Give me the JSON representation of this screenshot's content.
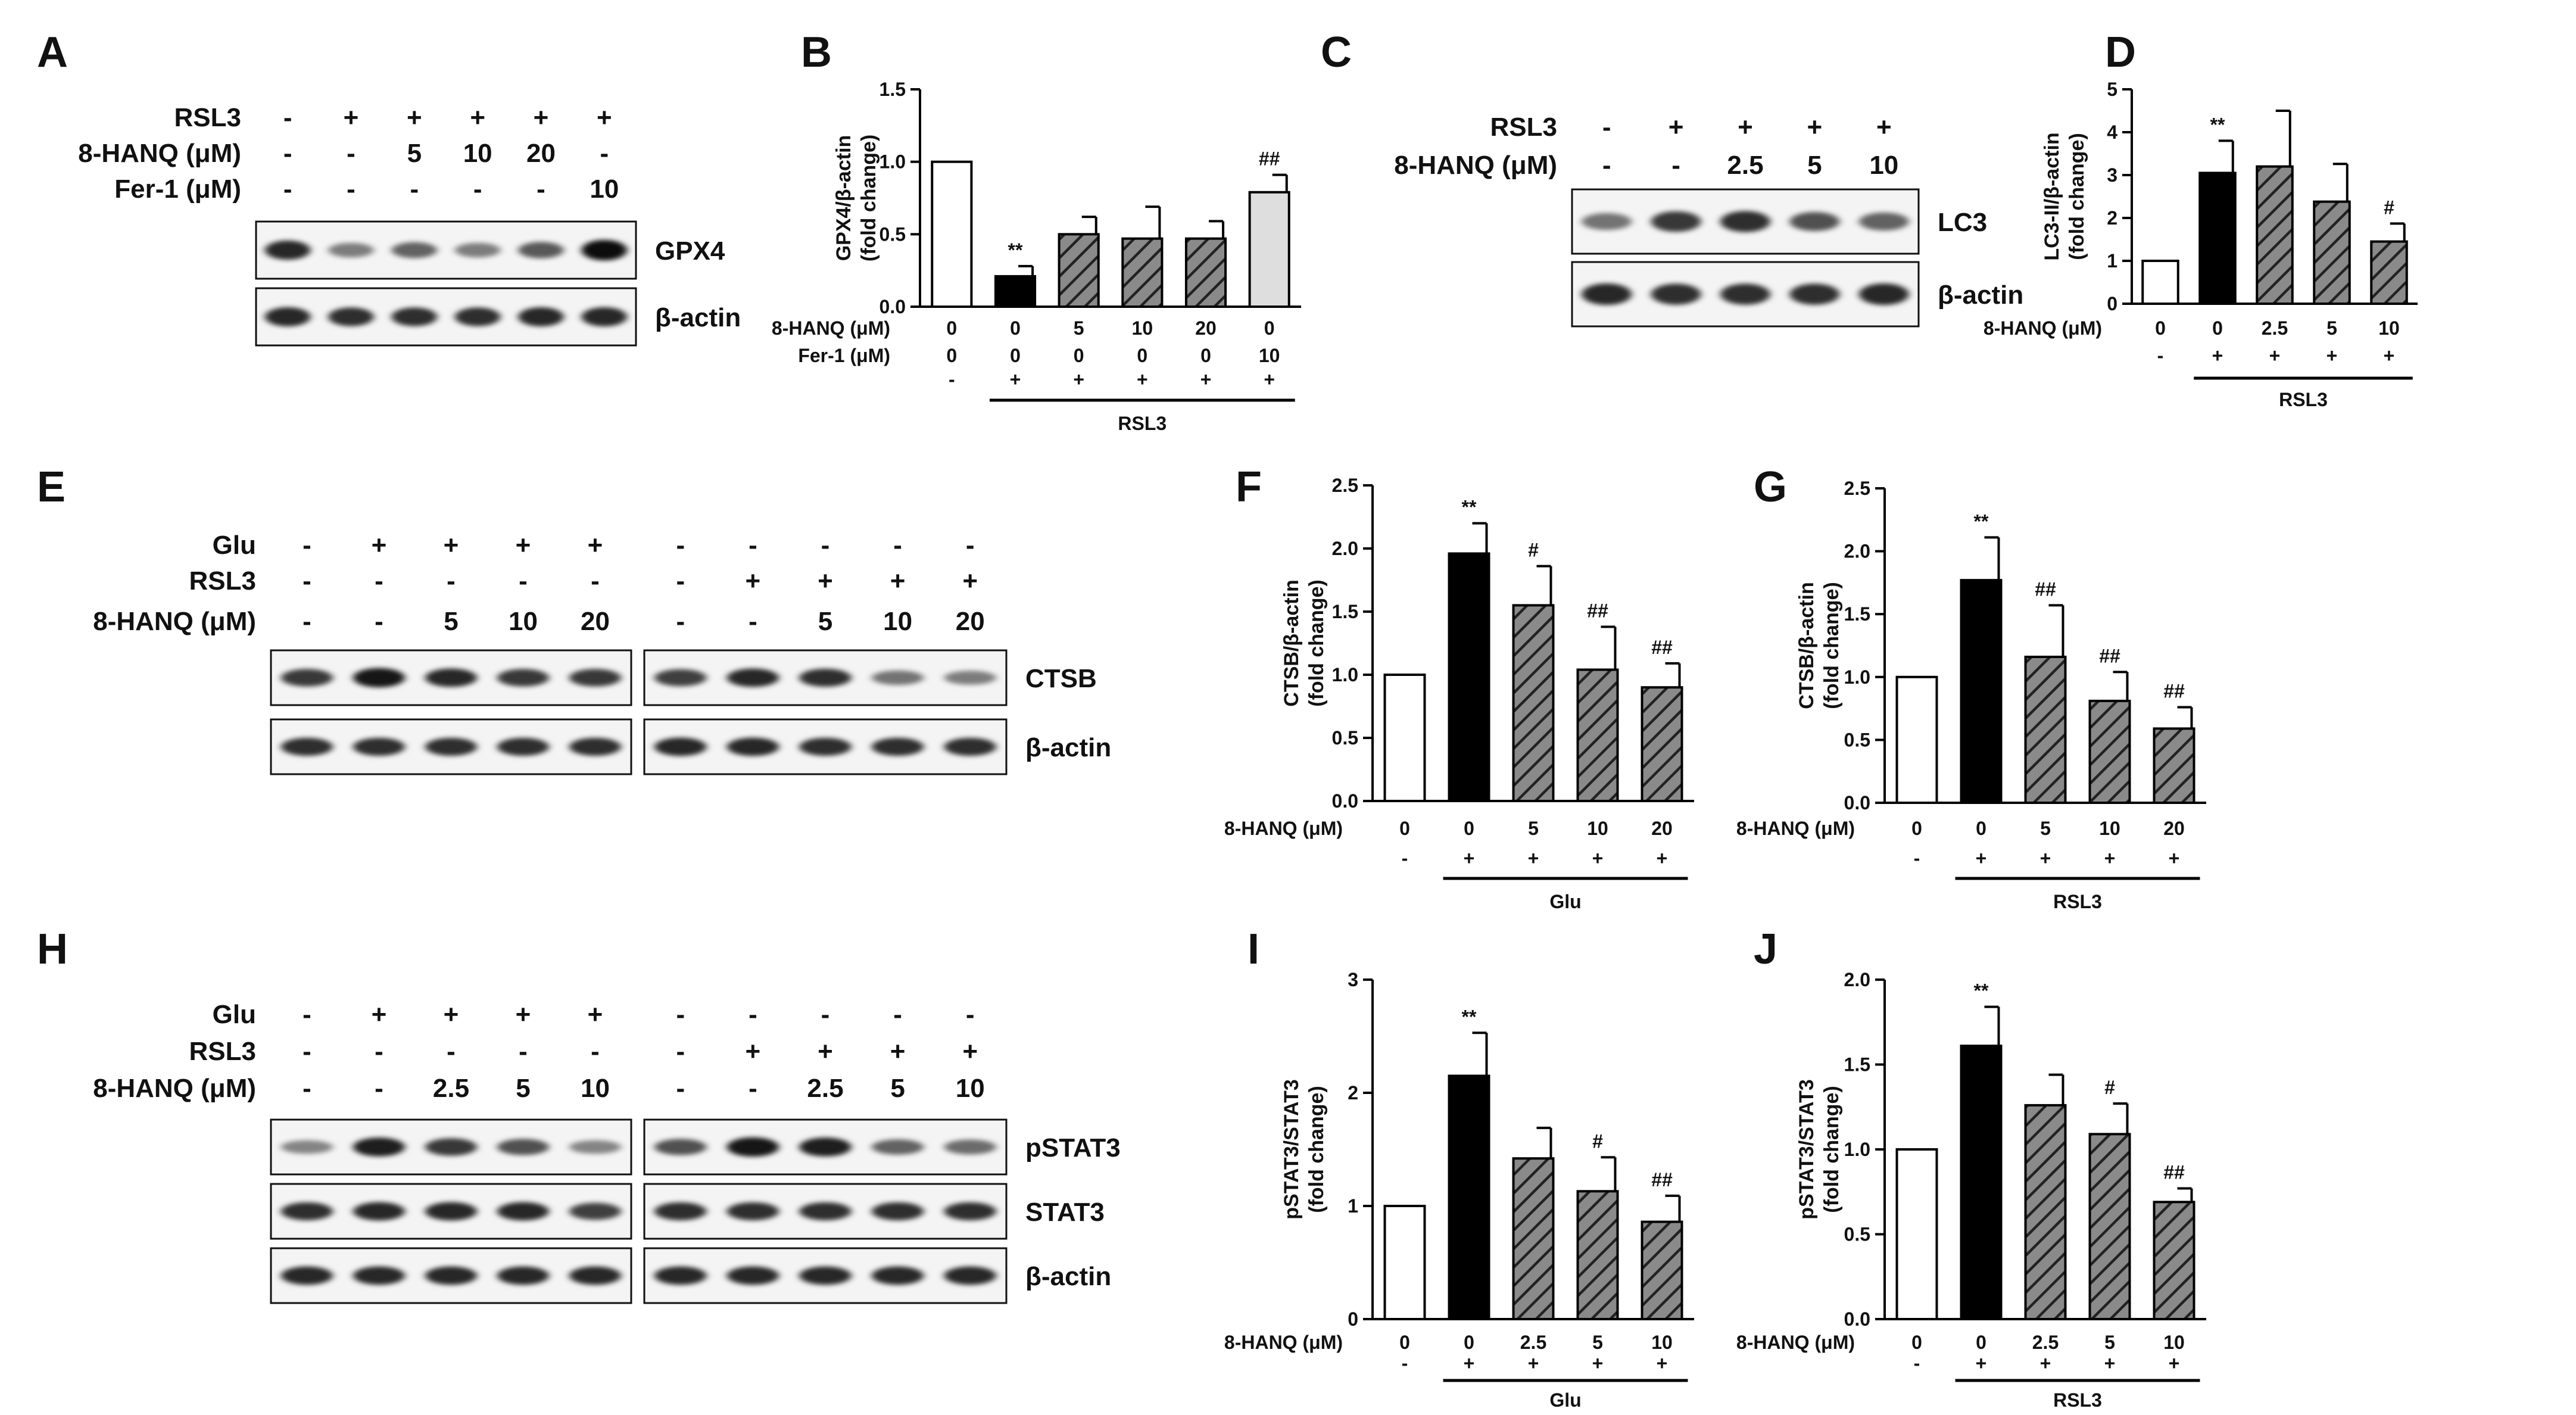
{
  "figure": {
    "blots": [
      {
        "letter": "A",
        "groups": [
          {
            "columns": 6,
            "rows": [
              {
                "label": "RSL3",
                "signs": [
                  "-",
                  "+",
                  "+",
                  "+",
                  "+",
                  "+"
                ]
              },
              {
                "label": "8-HANQ (μM)",
                "signs": [
                  "-",
                  "-",
                  "5",
                  "10",
                  "20",
                  "-"
                ]
              },
              {
                "label": "Fer-1 (μM)",
                "signs": [
                  "-",
                  "-",
                  "-",
                  "-",
                  "-",
                  "10"
                ]
              }
            ],
            "strips": [
              {
                "name": "GPX4",
                "intensity": [
                  0.85,
                  0.35,
                  0.5,
                  0.35,
                  0.55,
                  1.0
                ]
              },
              {
                "name": "β-actin",
                "intensity": [
                  0.85,
                  0.8,
                  0.8,
                  0.8,
                  0.85,
                  0.85
                ]
              }
            ]
          }
        ]
      },
      {
        "letter": "C",
        "groups": [
          {
            "columns": 5,
            "rows": [
              {
                "label": "RSL3",
                "signs": [
                  "-",
                  "+",
                  "+",
                  "+",
                  "+"
                ]
              },
              {
                "label": "8-HANQ (μM)",
                "signs": [
                  "-",
                  "-",
                  "2.5",
                  "5",
                  "10"
                ]
              }
            ],
            "strips": [
              {
                "name": "LC3",
                "intensity": [
                  0.4,
                  0.75,
                  0.8,
                  0.6,
                  0.5
                ]
              },
              {
                "name": "β-actin",
                "intensity": [
                  0.85,
                  0.8,
                  0.8,
                  0.8,
                  0.85
                ]
              }
            ]
          }
        ]
      },
      {
        "letter": "E",
        "groups": [
          {
            "columns": 5,
            "rows": [
              {
                "label": "Glu",
                "signs": [
                  "-",
                  "+",
                  "+",
                  "+",
                  "+"
                ]
              },
              {
                "label": "RSL3",
                "signs": [
                  "-",
                  "-",
                  "-",
                  "-",
                  "-"
                ]
              },
              {
                "label": "8-HANQ (μM)",
                "signs": [
                  "-",
                  "-",
                  "5",
                  "10",
                  "20"
                ]
              }
            ],
            "strips": [
              {
                "intensity": [
                  0.75,
                  0.95,
                  0.85,
                  0.75,
                  0.75
                ]
              },
              {
                "intensity": [
                  0.8,
                  0.8,
                  0.8,
                  0.8,
                  0.8
                ]
              }
            ]
          },
          {
            "columns": 5,
            "rows": [
              {
                "signs": [
                  "-",
                  "-",
                  "-",
                  "-",
                  "-"
                ]
              },
              {
                "signs": [
                  "-",
                  "+",
                  "+",
                  "+",
                  "+"
                ]
              },
              {
                "signs": [
                  "-",
                  "-",
                  "5",
                  "10",
                  "20"
                ]
              }
            ],
            "strips": [
              {
                "name": "CTSB",
                "intensity": [
                  0.7,
                  0.85,
                  0.8,
                  0.4,
                  0.35
                ]
              },
              {
                "name": "β-actin",
                "intensity": [
                  0.85,
                  0.85,
                  0.8,
                  0.8,
                  0.8
                ]
              }
            ]
          }
        ]
      },
      {
        "letter": "H",
        "groups": [
          {
            "columns": 5,
            "rows": [
              {
                "label": "Glu",
                "signs": [
                  "-",
                  "+",
                  "+",
                  "+",
                  "+"
                ]
              },
              {
                "label": "RSL3",
                "signs": [
                  "-",
                  "-",
                  "-",
                  "-",
                  "-"
                ]
              },
              {
                "label": "8-HANQ (μM)",
                "signs": [
                  "-",
                  "-",
                  "2.5",
                  "5",
                  "10"
                ]
              }
            ],
            "strips": [
              {
                "intensity": [
                  0.3,
                  0.9,
                  0.75,
                  0.6,
                  0.3
                ]
              },
              {
                "intensity": [
                  0.8,
                  0.85,
                  0.85,
                  0.85,
                  0.7
                ]
              },
              {
                "intensity": [
                  0.85,
                  0.85,
                  0.85,
                  0.85,
                  0.85
                ]
              }
            ]
          },
          {
            "columns": 5,
            "rows": [
              {
                "signs": [
                  "-",
                  "-",
                  "-",
                  "-",
                  "-"
                ]
              },
              {
                "signs": [
                  "-",
                  "+",
                  "+",
                  "+",
                  "+"
                ]
              },
              {
                "signs": [
                  "-",
                  "-",
                  "2.5",
                  "5",
                  "10"
                ]
              }
            ],
            "strips": [
              {
                "name": "pSTAT3",
                "intensity": [
                  0.6,
                  0.95,
                  0.9,
                  0.5,
                  0.45
                ]
              },
              {
                "name": "STAT3",
                "intensity": [
                  0.8,
                  0.8,
                  0.8,
                  0.8,
                  0.8
                ]
              },
              {
                "name": "β-actin",
                "intensity": [
                  0.85,
                  0.85,
                  0.85,
                  0.85,
                  0.85
                ]
              }
            ]
          }
        ]
      }
    ]
  },
  "chart_data": [
    {
      "letter": "B",
      "type": "bar",
      "ylabel": "GPX4/β-actin\n(fold change)",
      "ylim": [
        0,
        1.5
      ],
      "yticks": [
        "0.0",
        "0.5",
        "1.0",
        "1.5"
      ],
      "row_labels": [
        {
          "label": "8-HANQ (μM)",
          "values": [
            "0",
            "0",
            "5",
            "10",
            "20",
            "0"
          ]
        },
        {
          "label": "Fer-1 (μM)",
          "values": [
            "0",
            "0",
            "0",
            "0",
            "0",
            "10"
          ]
        }
      ],
      "signs": [
        "-",
        "+",
        "+",
        "+",
        "+",
        "+"
      ],
      "group_label": "RSL3",
      "values": [
        1.0,
        0.21,
        0.5,
        0.47,
        0.47,
        0.79
      ],
      "errors": [
        0,
        0.07,
        0.12,
        0.22,
        0.12,
        0.12
      ],
      "significance": [
        "",
        "**",
        "",
        "",
        "",
        "##"
      ],
      "fills": [
        "white",
        "black",
        "hatch",
        "hatch",
        "hatch",
        "lightgray"
      ]
    },
    {
      "letter": "D",
      "type": "bar",
      "ylabel": "LC3-II/β-actin\n(fold change)",
      "ylim": [
        0,
        5
      ],
      "yticks": [
        "0",
        "1",
        "2",
        "3",
        "4",
        "5"
      ],
      "row_labels": [
        {
          "label": "8-HANQ (μM)",
          "values": [
            "0",
            "0",
            "2.5",
            "5",
            "10"
          ]
        }
      ],
      "signs": [
        "-",
        "+",
        "+",
        "+",
        "+"
      ],
      "group_label": "RSL3",
      "values": [
        1.0,
        3.05,
        3.2,
        2.38,
        1.45
      ],
      "errors": [
        0,
        0.75,
        1.3,
        0.88,
        0.42
      ],
      "significance": [
        "",
        "**",
        "",
        "",
        "#"
      ],
      "fills": [
        "white",
        "black",
        "hatch",
        "hatch",
        "hatch"
      ]
    },
    {
      "letter": "F",
      "type": "bar",
      "ylabel": "CTSB/β-actin\n(fold change)",
      "ylim": [
        0,
        2.5
      ],
      "yticks": [
        "0.0",
        "0.5",
        "1.0",
        "1.5",
        "2.0",
        "2.5"
      ],
      "row_labels": [
        {
          "label": "8-HANQ (μM)",
          "values": [
            "0",
            "0",
            "5",
            "10",
            "20"
          ]
        }
      ],
      "signs": [
        "-",
        "+",
        "+",
        "+",
        "+"
      ],
      "group_label": "Glu",
      "values": [
        1.0,
        1.96,
        1.55,
        1.04,
        0.9
      ],
      "errors": [
        0,
        0.24,
        0.31,
        0.34,
        0.19
      ],
      "significance": [
        "",
        "**",
        "#",
        "##",
        "##"
      ],
      "fills": [
        "white",
        "black",
        "hatch",
        "hatch",
        "hatch"
      ]
    },
    {
      "letter": "G",
      "type": "bar",
      "ylabel": "CTSB/β-actin\n(fold change)",
      "ylim": [
        0,
        2.5
      ],
      "yticks": [
        "0.0",
        "0.5",
        "1.0",
        "1.5",
        "2.0",
        "2.5"
      ],
      "row_labels": [
        {
          "label": "8-HANQ (μM)",
          "values": [
            "0",
            "0",
            "5",
            "10",
            "20"
          ]
        }
      ],
      "signs": [
        "-",
        "+",
        "+",
        "+",
        "+"
      ],
      "group_label": "RSL3",
      "values": [
        1.0,
        1.77,
        1.16,
        0.81,
        0.59
      ],
      "errors": [
        0,
        0.34,
        0.41,
        0.23,
        0.17
      ],
      "significance": [
        "",
        "**",
        "##",
        "##",
        "##"
      ],
      "fills": [
        "white",
        "black",
        "hatch",
        "hatch",
        "hatch"
      ]
    },
    {
      "letter": "I",
      "type": "bar",
      "ylabel": "pSTAT3/STAT3\n(fold change)",
      "ylim": [
        0,
        3
      ],
      "yticks": [
        "0",
        "1",
        "2",
        "3"
      ],
      "row_labels": [
        {
          "label": "8-HANQ (μM)",
          "values": [
            "0",
            "0",
            "2.5",
            "5",
            "10"
          ]
        }
      ],
      "signs": [
        "-",
        "+",
        "+",
        "+",
        "+"
      ],
      "group_label": "Glu",
      "values": [
        1.0,
        2.15,
        1.42,
        1.13,
        0.86
      ],
      "errors": [
        0,
        0.38,
        0.27,
        0.3,
        0.23
      ],
      "significance": [
        "",
        "**",
        "",
        "#",
        "##"
      ],
      "fills": [
        "white",
        "black",
        "hatch",
        "hatch",
        "hatch"
      ]
    },
    {
      "letter": "J",
      "type": "bar",
      "ylabel": "pSTAT3/STAT3\n(fold change)",
      "ylim": [
        0,
        2
      ],
      "yticks": [
        "0.0",
        "0.5",
        "1.0",
        "1.5",
        "2.0"
      ],
      "row_labels": [
        {
          "label": "8-HANQ (μM)",
          "values": [
            "0",
            "0",
            "2.5",
            "5",
            "10"
          ]
        }
      ],
      "signs": [
        "-",
        "+",
        "+",
        "+",
        "+"
      ],
      "group_label": "RSL3",
      "values": [
        1.0,
        1.61,
        1.26,
        1.09,
        0.69
      ],
      "errors": [
        0,
        0.23,
        0.18,
        0.18,
        0.08
      ],
      "significance": [
        "",
        "**",
        "",
        "#",
        "##"
      ],
      "fills": [
        "white",
        "black",
        "hatch",
        "hatch",
        "hatch"
      ]
    }
  ]
}
